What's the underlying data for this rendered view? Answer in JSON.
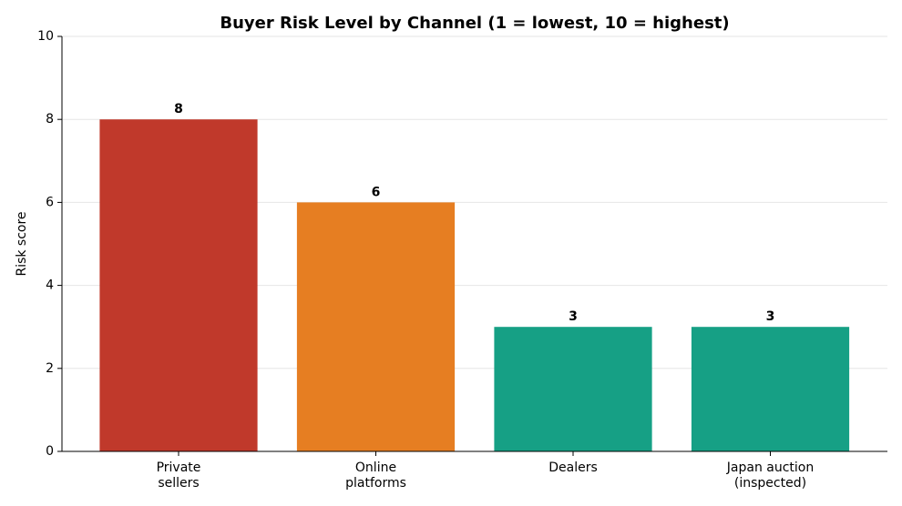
{
  "chart_data": {
    "type": "bar",
    "title": "Buyer Risk Level by Channel (1 = lowest, 10 = highest)",
    "y_label": "Risk score",
    "categories": [
      "Private\nsellers",
      "Online\nplatforms",
      "Dealers",
      "Japan auction\n(inspected)"
    ],
    "values": [
      8,
      6,
      3,
      3
    ],
    "colors": [
      "#c0392b",
      "#e67e22",
      "#16a085",
      "#16a085"
    ],
    "ylim": [
      0,
      10
    ],
    "yticks": [
      0,
      2,
      4,
      6,
      8,
      10
    ],
    "grid": true
  }
}
